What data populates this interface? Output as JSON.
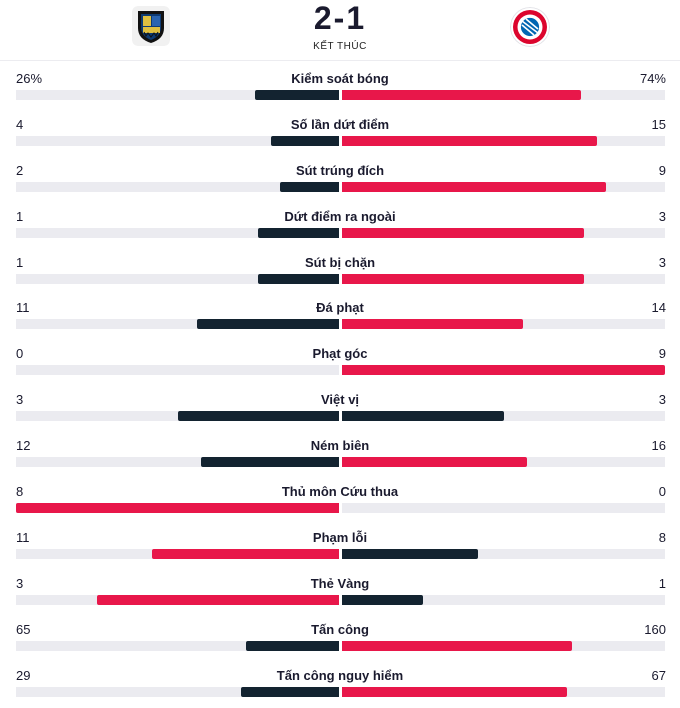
{
  "match": {
    "score": "2-1",
    "status": "KẾT THÚC",
    "home_logo_icon": "saarbrucken-crest-icon",
    "away_logo_icon": "bayern-munich-crest-icon"
  },
  "colors": {
    "highlight": "#e8174a",
    "neutral_bar": "#132330",
    "track": "#ebebf0"
  },
  "stats": [
    {
      "label": "Kiểm soát bóng",
      "home": "26%",
      "away": "74%",
      "home_v": 26,
      "away_v": 74,
      "max": 100
    },
    {
      "label": "Số lần dứt điểm",
      "home": "4",
      "away": "15",
      "home_v": 4,
      "away_v": 15,
      "max": 19
    },
    {
      "label": "Sút trúng đích",
      "home": "2",
      "away": "9",
      "home_v": 2,
      "away_v": 9,
      "max": 11
    },
    {
      "label": "Dứt điểm ra ngoài",
      "home": "1",
      "away": "3",
      "home_v": 1,
      "away_v": 3,
      "max": 4
    },
    {
      "label": "Sút bị chặn",
      "home": "1",
      "away": "3",
      "home_v": 1,
      "away_v": 3,
      "max": 4
    },
    {
      "label": "Đá phạt",
      "home": "11",
      "away": "14",
      "home_v": 11,
      "away_v": 14,
      "max": 25
    },
    {
      "label": "Phạt góc",
      "home": "0",
      "away": "9",
      "home_v": 0,
      "away_v": 9,
      "max": 9
    },
    {
      "label": "Việt vị",
      "home": "3",
      "away": "3",
      "home_v": 3,
      "away_v": 3,
      "max": 6
    },
    {
      "label": "Ném biên",
      "home": "12",
      "away": "16",
      "home_v": 12,
      "away_v": 16,
      "max": 28
    },
    {
      "label": "Thủ môn Cứu thua",
      "home": "8",
      "away": "0",
      "home_v": 8,
      "away_v": 0,
      "max": 8
    },
    {
      "label": "Phạm lỗi",
      "home": "11",
      "away": "8",
      "home_v": 11,
      "away_v": 8,
      "max": 19
    },
    {
      "label": "Thẻ Vàng",
      "home": "3",
      "away": "1",
      "home_v": 3,
      "away_v": 1,
      "max": 4
    },
    {
      "label": "Tấn công",
      "home": "65",
      "away": "160",
      "home_v": 65,
      "away_v": 160,
      "max": 225
    },
    {
      "label": "Tấn công nguy hiểm",
      "home": "29",
      "away": "67",
      "home_v": 29,
      "away_v": 67,
      "max": 96
    }
  ]
}
